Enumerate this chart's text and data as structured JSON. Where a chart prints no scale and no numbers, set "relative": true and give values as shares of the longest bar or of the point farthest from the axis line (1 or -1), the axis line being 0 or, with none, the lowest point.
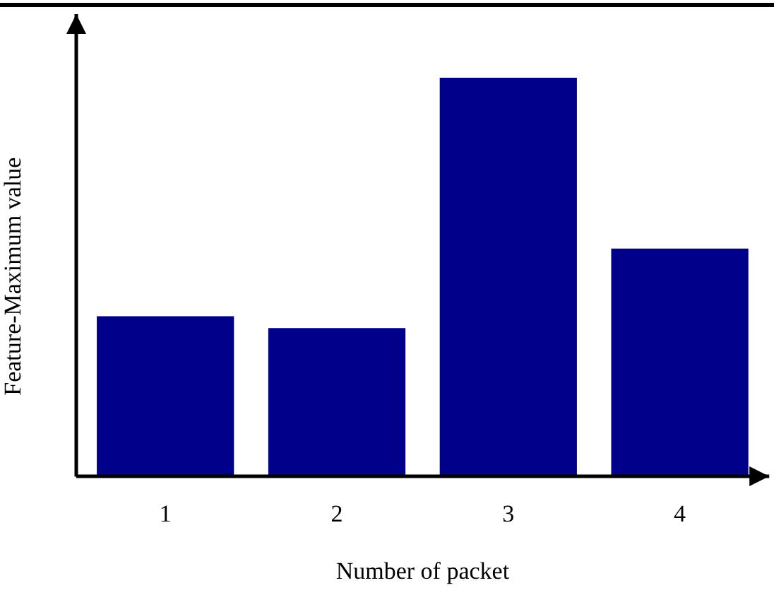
{
  "chart_data": {
    "type": "bar",
    "relative": true,
    "xlabel": "Number of packet",
    "ylabel": "Feature-Maximum value",
    "categories": [
      "1",
      "2",
      "3",
      "4"
    ],
    "values": [
      0.4,
      0.37,
      1,
      0.57
    ],
    "color": "#00008b",
    "grid": false,
    "legend": false
  }
}
